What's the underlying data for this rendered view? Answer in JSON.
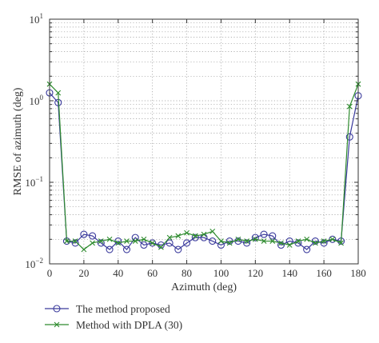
{
  "chart_data": {
    "type": "line",
    "title": "",
    "xlabel": "Azimuth (deg)",
    "ylabel": "RMSE of azimuth (deg)",
    "xlim": [
      0,
      180
    ],
    "ylim": [
      0.01,
      10
    ],
    "yscale": "log",
    "grid": true,
    "grid_style": "dotted",
    "legend_position": "bottom-left, below plot",
    "x_ticks": [
      "0",
      "20",
      "40",
      "60",
      "80",
      "100",
      "120",
      "140",
      "160",
      "180"
    ],
    "y_ticks": [
      {
        "base": "10",
        "exp": "−2"
      },
      {
        "base": "10",
        "exp": "−1"
      },
      {
        "base": "10",
        "exp": "0"
      },
      {
        "base": "10",
        "exp": "1"
      }
    ],
    "x": [
      0,
      5,
      10,
      15,
      20,
      25,
      30,
      35,
      40,
      45,
      50,
      55,
      60,
      65,
      70,
      75,
      80,
      85,
      90,
      95,
      100,
      105,
      110,
      115,
      120,
      125,
      130,
      135,
      140,
      145,
      150,
      155,
      160,
      165,
      170,
      175,
      180
    ],
    "series": [
      {
        "name": "The method proposed",
        "color": "#3a3a9c",
        "marker": "circle",
        "values": [
          1.25,
          0.95,
          0.019,
          0.018,
          0.023,
          0.022,
          0.018,
          0.015,
          0.019,
          0.015,
          0.021,
          0.017,
          0.018,
          0.017,
          0.018,
          0.015,
          0.018,
          0.021,
          0.021,
          0.019,
          0.017,
          0.019,
          0.019,
          0.018,
          0.021,
          0.023,
          0.022,
          0.017,
          0.019,
          0.018,
          0.015,
          0.019,
          0.018,
          0.02,
          0.019,
          0.36,
          1.15
        ]
      },
      {
        "name": "Method with DPLA (30)",
        "color": "#2e8b2e",
        "marker": "x",
        "values": [
          1.6,
          1.25,
          0.019,
          0.019,
          0.015,
          0.018,
          0.019,
          0.02,
          0.018,
          0.019,
          0.019,
          0.02,
          0.018,
          0.016,
          0.021,
          0.022,
          0.024,
          0.022,
          0.023,
          0.025,
          0.019,
          0.018,
          0.02,
          0.019,
          0.02,
          0.019,
          0.019,
          0.018,
          0.017,
          0.019,
          0.02,
          0.018,
          0.019,
          0.02,
          0.018,
          0.85,
          1.6
        ]
      }
    ]
  }
}
